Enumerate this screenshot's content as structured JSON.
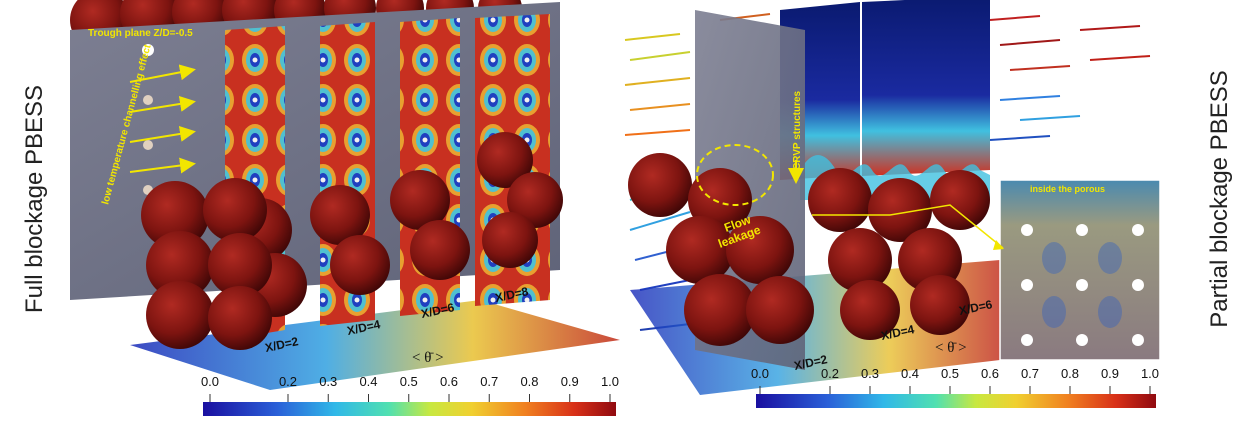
{
  "left_panel": {
    "side_label": "Full blockage PBESS",
    "trough_label": "Trough plane Z/D=-0.5",
    "channel_label": "low temperature channelling effect",
    "planes": [
      "X/D=2",
      "X/D=4",
      "X/D=6",
      "X/D=8"
    ]
  },
  "right_panel": {
    "side_label": "Partial blockage PBESS",
    "crvp_label": "CRVP structures",
    "leak_label_1": "Flow",
    "leak_label_2": "leakage",
    "porous_label": "inside the porous",
    "planes": [
      "X/D=2",
      "X/D=4",
      "X/D=6"
    ]
  },
  "colorbar": {
    "title": "< θ̄ >",
    "ticks": [
      "0.0",
      "0.2",
      "0.3",
      "0.4",
      "0.5",
      "0.6",
      "0.7",
      "0.8",
      "0.9",
      "1.0"
    ],
    "colors": [
      "#1b1bb0",
      "#2a5ed8",
      "#2ea6e8",
      "#3fd8c8",
      "#9be060",
      "#f0e040",
      "#f5a030",
      "#e85020",
      "#b01818"
    ]
  }
}
